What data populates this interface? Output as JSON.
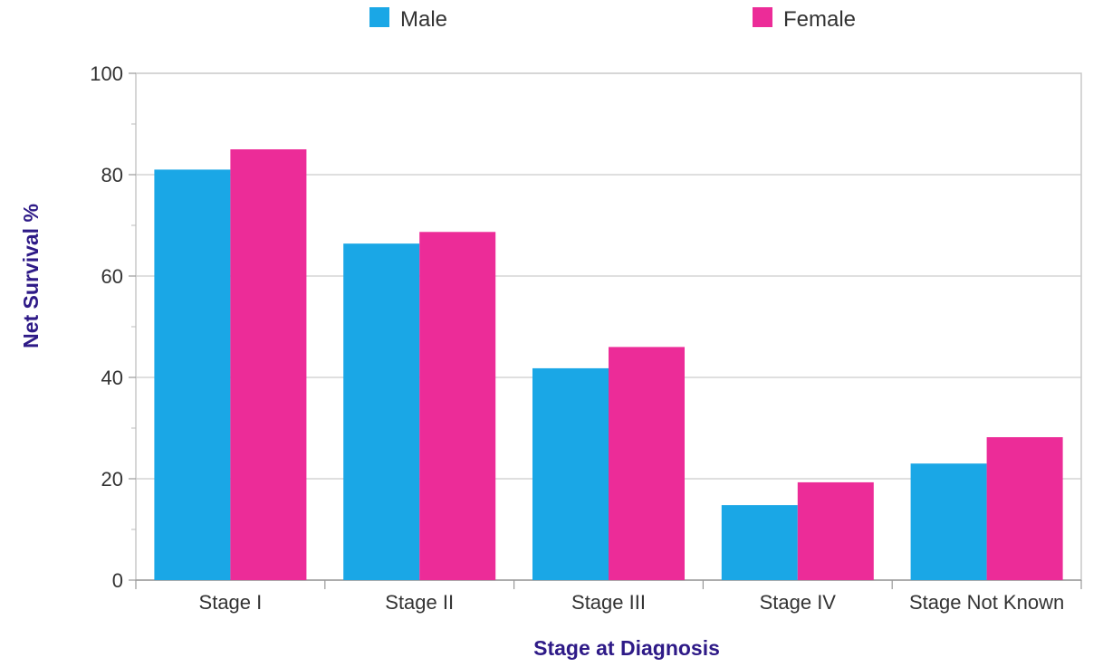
{
  "chart_data": {
    "type": "bar",
    "title": "",
    "xlabel": "Stage at Diagnosis",
    "ylabel": "Net Survival %",
    "ylim": [
      0,
      100
    ],
    "yticks": [
      0,
      20,
      40,
      60,
      80,
      100
    ],
    "grid": true,
    "legend_position": "top",
    "categories": [
      "Stage I",
      "Stage II",
      "Stage III",
      "Stage IV",
      "Stage Not Known"
    ],
    "series": [
      {
        "name": "Male",
        "color": "#1aa7e6",
        "values": [
          81,
          66.4,
          41.8,
          14.8,
          23
        ]
      },
      {
        "name": "Female",
        "color": "#ec2c98",
        "values": [
          85,
          68.7,
          46,
          19.3,
          28.2
        ]
      }
    ]
  }
}
